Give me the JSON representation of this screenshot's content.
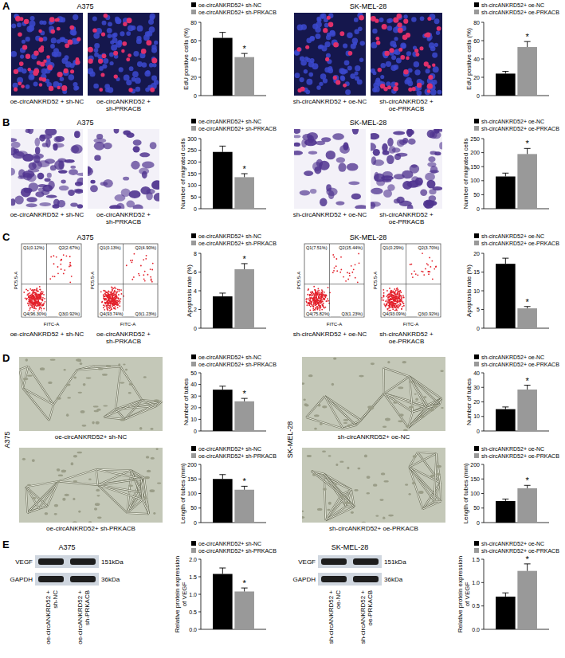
{
  "chart_data": [
    {
      "type": "bar",
      "y_label": "EdU positive cells (%)",
      "categories": [
        null
      ],
      "series": [
        {
          "name": "oe-circANKRD52+ sh-NC",
          "color": "#000000",
          "values": [
            63
          ],
          "errors": [
            6
          ]
        },
        {
          "name": "oe-circANKRD52+ sh-PRKACB",
          "color": "#999999",
          "values": [
            42
          ],
          "errors": [
            4
          ],
          "annotation": "*"
        }
      ],
      "ylim": [
        0,
        80
      ],
      "yticks": [
        0,
        20,
        40,
        60,
        80
      ],
      "tick_labels": "y",
      "legend": "top"
    },
    {
      "type": "bar",
      "y_label": "EdU positive cells (%)",
      "categories": [
        null
      ],
      "series": [
        {
          "name": "sh-circANKRD52+ oe-NC",
          "color": "#000000",
          "values": [
            24
          ],
          "errors": [
            2.5
          ]
        },
        {
          "name": "sh-circANKRD52+ oe-PRKACB",
          "color": "#999999",
          "values": [
            53
          ],
          "errors": [
            6
          ],
          "annotation": "*"
        }
      ],
      "ylim": [
        0,
        80
      ],
      "yticks": [
        0,
        20,
        40,
        60,
        80
      ],
      "tick_labels": "y",
      "legend": "top"
    },
    {
      "type": "bar",
      "y_label": "Number of migrated cells",
      "categories": [
        null
      ],
      "series": [
        {
          "name": "oe-circANKRD52+ sh-NC",
          "color": "#000000",
          "values": [
            243
          ],
          "errors": [
            25
          ]
        },
        {
          "name": "oe-circANKRD52+ sh-PRKACB",
          "color": "#999999",
          "values": [
            135
          ],
          "errors": [
            15
          ],
          "annotation": "*"
        }
      ],
      "ylim": [
        0,
        300
      ],
      "yticks": [
        0,
        50,
        100,
        150,
        200,
        250,
        300
      ],
      "tick_labels": "y",
      "legend": "top"
    },
    {
      "type": "bar",
      "y_label": "Number of migrated cells",
      "categories": [
        null
      ],
      "series": [
        {
          "name": "sh-circANKRD52+ oe-NC",
          "color": "#000000",
          "values": [
            115
          ],
          "errors": [
            12
          ]
        },
        {
          "name": "sh-circANKRD52+ oe-PRKACB",
          "color": "#999999",
          "values": [
            195
          ],
          "errors": [
            20
          ],
          "annotation": "*"
        }
      ],
      "ylim": [
        0,
        250
      ],
      "yticks": [
        0,
        50,
        100,
        150,
        200,
        250
      ],
      "tick_labels": "y",
      "legend": "top"
    },
    {
      "type": "bar",
      "y_label": "Apoptosis rate (%)",
      "categories": [
        null
      ],
      "series": [
        {
          "name": "oe-circANKRD52+ sh-NC",
          "color": "#000000",
          "values": [
            3.4
          ],
          "errors": [
            0.35
          ]
        },
        {
          "name": "oe-circANKRD52+ sh-PRKACB",
          "color": "#999999",
          "values": [
            6.3
          ],
          "errors": [
            0.6
          ],
          "annotation": "*"
        }
      ],
      "ylim": [
        0,
        8
      ],
      "yticks": [
        0,
        2,
        4,
        6,
        8
      ],
      "tick_labels": "y",
      "legend": "top"
    },
    {
      "type": "bar",
      "y_label": "Apoptosis rate (%)",
      "categories": [
        null
      ],
      "series": [
        {
          "name": "sh-circANKRD52+ oe-NC",
          "color": "#000000",
          "values": [
            17.2
          ],
          "errors": [
            1.5
          ]
        },
        {
          "name": "sh-circANKRD52+ oe-PRKACB",
          "color": "#999999",
          "values": [
            5.3
          ],
          "errors": [
            0.5
          ],
          "annotation": "*"
        }
      ],
      "ylim": [
        0,
        20
      ],
      "yticks": [
        0,
        5,
        10,
        15,
        20
      ],
      "tick_labels": "y",
      "legend": "top"
    },
    {
      "type": "bar",
      "y_label": "Number of tubes",
      "categories": [
        null
      ],
      "series": [
        {
          "name": "oe-circANKRD52+ sh-NC",
          "color": "#000000",
          "values": [
            35.5
          ],
          "errors": [
            3
          ]
        },
        {
          "name": "oe-circANKRD52+ sh-PRKACB",
          "color": "#999999",
          "values": [
            25.5
          ],
          "errors": [
            2.5
          ],
          "annotation": "*"
        }
      ],
      "ylim": [
        0,
        50
      ],
      "yticks": [
        0,
        10,
        20,
        30,
        40,
        50
      ],
      "tick_labels": "y",
      "legend": "top"
    },
    {
      "type": "bar",
      "y_label": "Length of tubes (mm)",
      "categories": [
        null
      ],
      "series": [
        {
          "name": "oe-circANKRD52+ sh-NC",
          "color": "#000000",
          "values": [
            150
          ],
          "errors": [
            15
          ]
        },
        {
          "name": "oe-circANKRD52+ sh-PRKACB",
          "color": "#999999",
          "values": [
            113
          ],
          "errors": [
            12
          ],
          "annotation": "*"
        }
      ],
      "ylim": [
        0,
        200
      ],
      "yticks": [
        0,
        50,
        100,
        150,
        200
      ],
      "tick_labels": "y",
      "legend": "top"
    },
    {
      "type": "bar",
      "y_label": "Number of tubes",
      "categories": [
        null
      ],
      "series": [
        {
          "name": "sh-circANKRD52+ oe-NC",
          "color": "#000000",
          "values": [
            15
          ],
          "errors": [
            1.5
          ]
        },
        {
          "name": "sh-circANKRD52+ oe-PRKACB",
          "color": "#999999",
          "values": [
            28.5
          ],
          "errors": [
            3
          ],
          "annotation": "*"
        }
      ],
      "ylim": [
        0,
        40
      ],
      "yticks": [
        0,
        10,
        20,
        30,
        40
      ],
      "tick_labels": "y",
      "legend": "top"
    },
    {
      "type": "bar",
      "y_label": "Length of tubes (mm)",
      "categories": [
        null
      ],
      "series": [
        {
          "name": "sh-circANKRD52+ oe-NC",
          "color": "#000000",
          "values": [
            74
          ],
          "errors": [
            7
          ]
        },
        {
          "name": "sh-circANKRD52+ oe-PRKACB",
          "color": "#999999",
          "values": [
            118
          ],
          "errors": [
            10
          ],
          "annotation": "*"
        }
      ],
      "ylim": [
        0,
        200
      ],
      "yticks": [
        0,
        50,
        100,
        150,
        200
      ],
      "tick_labels": "y",
      "legend": "top"
    },
    {
      "type": "bar",
      "y_label": "Relative protein expression of VEGF",
      "categories": [
        null
      ],
      "series": [
        {
          "name": "oe-circANKRD52+ sh-NC",
          "color": "#000000",
          "values": [
            1.58
          ],
          "errors": [
            0.17
          ]
        },
        {
          "name": "oe-circANKRD52+ sh-PRKACB",
          "color": "#999999",
          "values": [
            1.08
          ],
          "errors": [
            0.1
          ],
          "annotation": "*"
        }
      ],
      "ylim": [
        0,
        2
      ],
      "yticks": [
        {
          "value": 0,
          "label": "0.0"
        },
        0.5,
        {
          "value": 1,
          "label": "1.0"
        },
        1.5,
        {
          "value": 2,
          "label": "2.0"
        }
      ],
      "tick_labels": "y",
      "legend": "top"
    },
    {
      "type": "bar",
      "y_label": "Relative protein expression of VEGF",
      "categories": [
        null
      ],
      "series": [
        {
          "name": "sh-circANKRD52+ oe-NC",
          "color": "#000000",
          "values": [
            0.7
          ],
          "errors": [
            0.08
          ]
        },
        {
          "name": "sh-circANKRD52+ oe-PRKACB",
          "color": "#999999",
          "values": [
            1.25
          ],
          "errors": [
            0.15
          ],
          "annotation": "*"
        }
      ],
      "ylim": [
        0,
        1.5
      ],
      "yticks": [
        {
          "value": 0,
          "label": "0.0"
        },
        0.5,
        {
          "value": 1,
          "label": "1.0"
        },
        1.5
      ],
      "tick_labels": "y",
      "legend": "top"
    }
  ],
  "figure": {
    "panels": [
      {
        "letter": "A",
        "type": "fluorescence",
        "groups": [
          {
            "cell_line": "A375",
            "images": [
              {
                "caption": "oe-circANKRD52 + sh-NC"
              },
              {
                "caption": "oe-circANKRD52 + sh-PRKACB"
              }
            ]
          },
          {
            "cell_line": "SK-MEL-28",
            "images": [
              {
                "caption": "sh-circANKRD52 + oe-NC"
              },
              {
                "caption": "sh-circANKRD52 + oe-PRKACB"
              }
            ]
          }
        ]
      },
      {
        "letter": "B",
        "type": "stain",
        "groups": [
          {
            "cell_line": "A375",
            "images": [
              {
                "caption": "oe-circANKRD52 + sh-NC"
              },
              {
                "caption": "oe-circANKRD52 + sh-PRKACB"
              }
            ]
          },
          {
            "cell_line": "SK-MEL-28",
            "images": [
              {
                "caption": "sh-circANKRD52 + oe-NC"
              },
              {
                "caption": "sh-circANKRD52 + oe-PRKACB"
              }
            ]
          }
        ]
      },
      {
        "letter": "C",
        "type": "flow",
        "groups": [
          {
            "cell_line": "A375",
            "images": [
              {
                "caption": "oe-circANKRD52 + sh-NC",
                "x_label": "FITC-A",
                "y_label": "PC5.5-A",
                "quadrants": [
                  "Q1(0.12%)",
                  "Q2(2.67%)",
                  "Q3(0.92%)",
                  "Q4(96.30%)"
                ]
              },
              {
                "caption": "oe-circANKRD52 + sh-PRKACB",
                "x_label": "FITC-A",
                "y_label": "PC5.5-A",
                "quadrants": [
                  "Q1(0.13%)",
                  "Q2(4.90%)",
                  "Q3(1.23%)",
                  "Q4(93.74%)"
                ]
              }
            ]
          },
          {
            "cell_line": "SK-MEL-28",
            "images": [
              {
                "caption": "sh-circANKRD52 + oe-NC",
                "x_label": "FITC-A",
                "y_label": "PC5.5-A",
                "quadrants": [
                  "Q1(7.51%)",
                  "Q2(15.44%)",
                  "Q3(1.23%)",
                  "Q4(75.82%)"
                ]
              },
              {
                "caption": "sh-circANKRD52 + oe-PRKACB",
                "x_label": "FITC-A",
                "y_label": "PC5.5-A",
                "quadrants": [
                  "Q1(0.29%)",
                  "Q2(3.70%)",
                  "Q3(0.92%)",
                  "Q4(93.09%)"
                ]
              }
            ]
          }
        ]
      },
      {
        "letter": "D",
        "type": "tube",
        "groups": [
          {
            "cell_line": "A375",
            "images": [
              {
                "caption": "oe-circANKRD52+ sh-NC"
              },
              {
                "caption": "oe-circANKRD52+ sh-PRKACB"
              }
            ]
          },
          {
            "cell_line": "SK-MEL-28",
            "images": [
              {
                "caption": "sh-circANKRD52+ oe-NC"
              },
              {
                "caption": "sh-circANKRD52+ oe-PRKACB"
              }
            ]
          }
        ]
      },
      {
        "letter": "E",
        "type": "blot",
        "groups": [
          {
            "cell_line": "A375",
            "bands": [
              {
                "label": "VEGF",
                "size": "151kDa"
              },
              {
                "label": "GAPDH",
                "size": "36kDa"
              }
            ],
            "lanes": [
              "oe-circANKRD52 + sh-NC",
              "oe-circANKRD52 + sh-PRKACB"
            ]
          },
          {
            "cell_line": "SK-MEL-28",
            "bands": [
              {
                "label": "VEGF",
                "size": "151kDa"
              },
              {
                "label": "GAPDH",
                "size": "36kDa"
              }
            ],
            "lanes": [
              "sh-circANKRD52 + oe-NC",
              "sh-circANKRD52 + oe-PRKACB"
            ]
          }
        ]
      }
    ]
  }
}
